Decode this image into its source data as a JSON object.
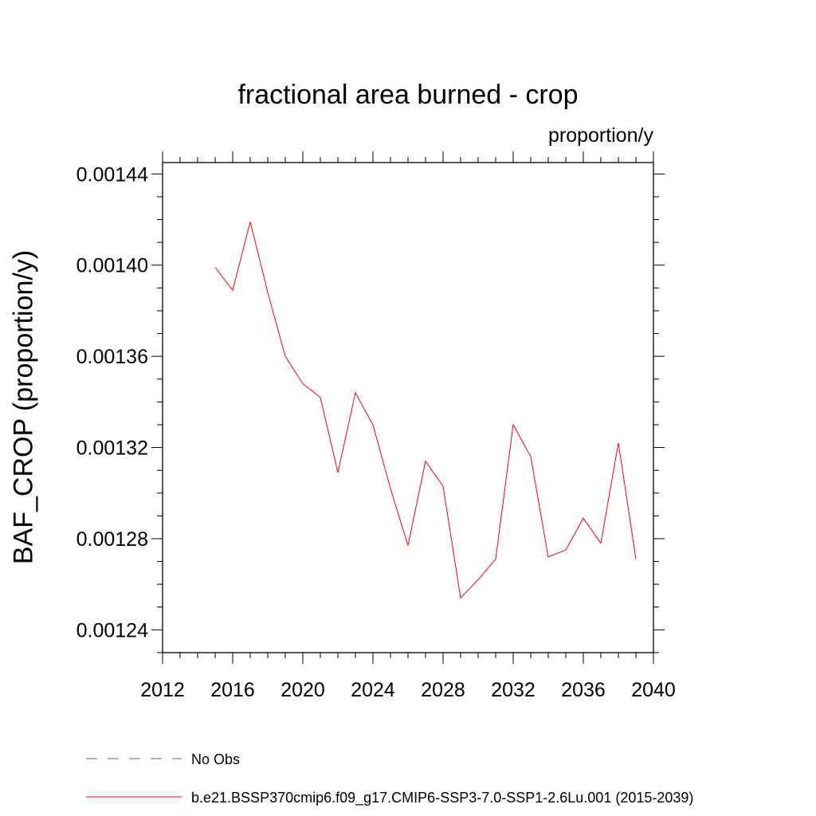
{
  "chart_data": {
    "type": "line",
    "title": "fractional area burned - crop",
    "units": "proportion/y",
    "ylabel": "BAF_CROP  (proportion/y)",
    "xlabel": "",
    "xlim": [
      2012,
      2040
    ],
    "ylim": [
      0.00123,
      0.001445
    ],
    "xticks": [
      2012,
      2016,
      2020,
      2024,
      2028,
      2032,
      2036,
      2040
    ],
    "xtick_labels": [
      "2012",
      "2016",
      "2020",
      "2024",
      "2028",
      "2032",
      "2036",
      "2040"
    ],
    "yticks": [
      0.00124,
      0.00128,
      0.00132,
      0.00136,
      0.0014,
      0.00144
    ],
    "ytick_labels": [
      "0.00124",
      "0.00128",
      "0.00132",
      "0.00136",
      "0.00140",
      "0.00144"
    ],
    "grid": false,
    "legend_position": "bottom",
    "series": [
      {
        "name": "No Obs",
        "color": "#6a5acd",
        "style": "dashed",
        "x": [],
        "y": []
      },
      {
        "name": "b.e21.BSSP370cmip6.f09_g17.CMIP6-SSP3-7.0-SSP1-2.6Lu.001 (2015-2039)",
        "color": "#ff0000",
        "style": "solid",
        "x": [
          2015,
          2016,
          2017,
          2018,
          2019,
          2020,
          2021,
          2022,
          2023,
          2024,
          2025,
          2026,
          2027,
          2028,
          2029,
          2030,
          2031,
          2032,
          2033,
          2034,
          2035,
          2036,
          2037,
          2038,
          2039
        ],
        "y": [
          0.001399,
          0.001389,
          0.001419,
          0.001388,
          0.00136,
          0.001348,
          0.001342,
          0.001309,
          0.001344,
          0.00133,
          0.001302,
          0.001277,
          0.001314,
          0.001303,
          0.001254,
          0.001262,
          0.001271,
          0.00133,
          0.001316,
          0.001272,
          0.001275,
          0.001289,
          0.001278,
          0.001322,
          0.001271
        ]
      }
    ]
  }
}
